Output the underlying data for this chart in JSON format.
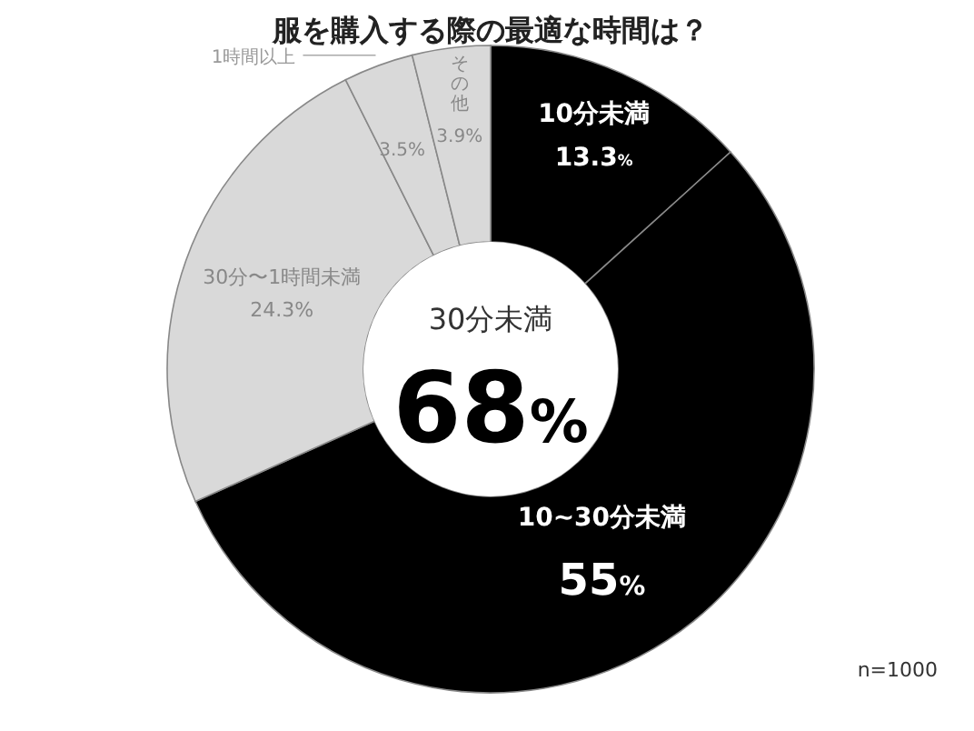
{
  "chart_data": {
    "type": "donut",
    "title": "服を購入する際の最適な時間は？",
    "categories": [
      "10分未満",
      "10~30分未満",
      "30分〜1時間未満",
      "1時間以上",
      "その他"
    ],
    "values": [
      13.3,
      55,
      24.3,
      3.5,
      3.9
    ],
    "colors": [
      "#000000",
      "#000000",
      "#d9d9d9",
      "#d9d9d9",
      "#d9d9d9"
    ],
    "value_labels": [
      "13.3%",
      "55%",
      "24.3%",
      "3.5%",
      "3.9%"
    ],
    "annotations": [
      "30分未満",
      "68%",
      "n=1000"
    ]
  }
}
